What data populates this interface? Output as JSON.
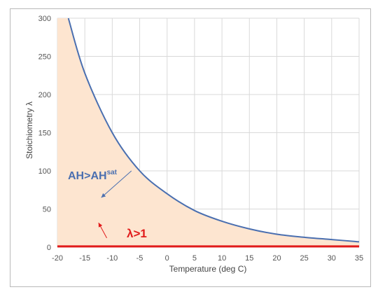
{
  "chart_data": {
    "type": "area",
    "xlabel": "Temperature (deg C)",
    "ylabel": "Stoichiometry λ",
    "xlim": [
      -20,
      35
    ],
    "ylim": [
      0,
      300
    ],
    "x_ticks": [
      "-20",
      "-15",
      "-10",
      "-5",
      "0",
      "5",
      "10",
      "15",
      "20",
      "25",
      "30",
      "35"
    ],
    "y_ticks": [
      "0",
      "50",
      "100",
      "150",
      "200",
      "250",
      "300"
    ],
    "grid": true,
    "series": [
      {
        "x": [
          -18,
          -15,
          -10,
          -5,
          0,
          5,
          10,
          15,
          20,
          25,
          30,
          35
        ],
        "y": [
          300,
          228,
          150,
          100,
          70,
          48,
          34,
          24,
          17,
          13,
          10,
          7
        ],
        "color": "#4a6fb0",
        "fill": "#fde5d0"
      },
      {
        "x": [
          -20,
          35
        ],
        "y": [
          1,
          1
        ],
        "color": "#e11b1b"
      }
    ],
    "annotations": [
      {
        "main": "AH>AH",
        "sup": "sat",
        "color": "#4a6fb0",
        "arrow_from": [
          -6.5,
          100
        ],
        "arrow_to": [
          -12,
          65
        ]
      },
      {
        "text": "λ>1",
        "color": "#e11b1b",
        "arrow_from": [
          -11,
          12
        ],
        "arrow_to": [
          -12.5,
          32
        ]
      }
    ]
  }
}
